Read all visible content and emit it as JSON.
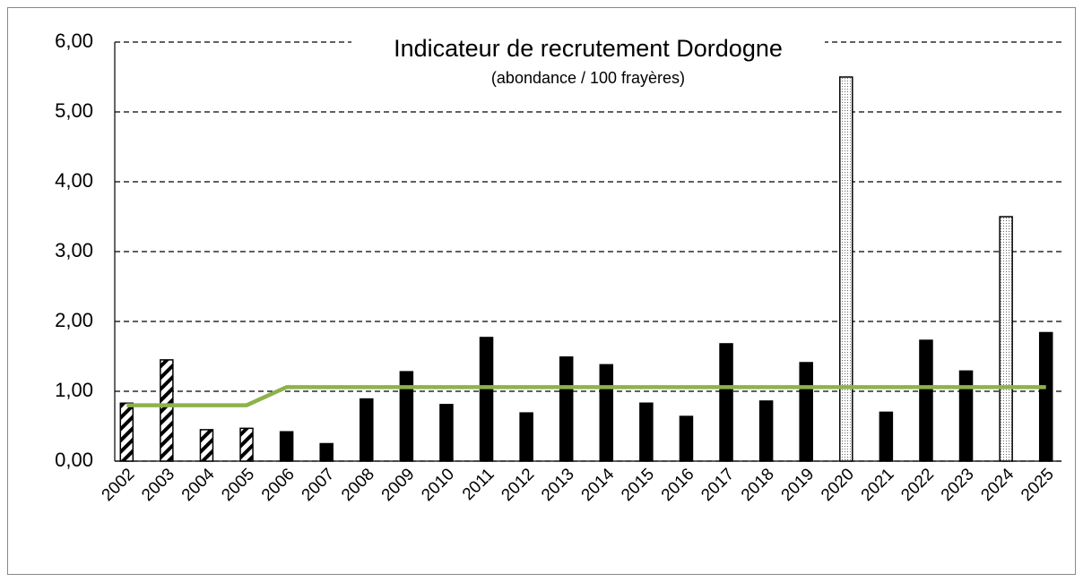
{
  "chart_data": {
    "type": "bar",
    "title": "Indicateur de recrutement Dordogne",
    "subtitle": "(abondance / 100 frayères)",
    "categories": [
      "2002",
      "2003",
      "2004",
      "2005",
      "2006",
      "2007",
      "2008",
      "2009",
      "2010",
      "2011",
      "2012",
      "2013",
      "2014",
      "2015",
      "2016",
      "2017",
      "2018",
      "2019",
      "2020",
      "2021",
      "2022",
      "2023",
      "2024",
      "2025"
    ],
    "series": [
      {
        "type": "bar",
        "color": "#000000",
        "values": [
          0.83,
          1.45,
          0.45,
          0.47,
          0.42,
          0.25,
          0.89,
          1.28,
          0.81,
          1.77,
          0.69,
          1.49,
          1.38,
          0.83,
          0.64,
          1.68,
          0.86,
          1.41,
          5.5,
          0.7,
          1.73,
          1.29,
          3.5,
          1.84
        ],
        "styles": [
          "hatched",
          "hatched",
          "hatched",
          "hatched",
          "solid",
          "solid",
          "solid",
          "solid",
          "solid",
          "solid",
          "solid",
          "solid",
          "solid",
          "solid",
          "solid",
          "solid",
          "solid",
          "solid",
          "dotted",
          "solid",
          "solid",
          "solid",
          "dotted",
          "solid"
        ]
      },
      {
        "type": "line",
        "color": "#8db24a",
        "values": [
          0.8,
          0.8,
          0.8,
          0.8,
          1.06,
          1.06,
          1.06,
          1.06,
          1.06,
          1.06,
          1.06,
          1.06,
          1.06,
          1.06,
          1.06,
          1.06,
          1.06,
          1.06,
          1.06,
          1.06,
          1.06,
          1.06,
          1.06,
          1.06
        ]
      }
    ],
    "ylim": [
      0,
      6
    ],
    "yticks": [
      {
        "value": 0,
        "label": "0,00"
      },
      {
        "value": 1,
        "label": "1,00"
      },
      {
        "value": 2,
        "label": "2,00"
      },
      {
        "value": 3,
        "label": "3,00"
      },
      {
        "value": 4,
        "label": "4,00"
      },
      {
        "value": 5,
        "label": "5,00"
      },
      {
        "value": 6,
        "label": "6,00"
      }
    ],
    "grid": true
  }
}
